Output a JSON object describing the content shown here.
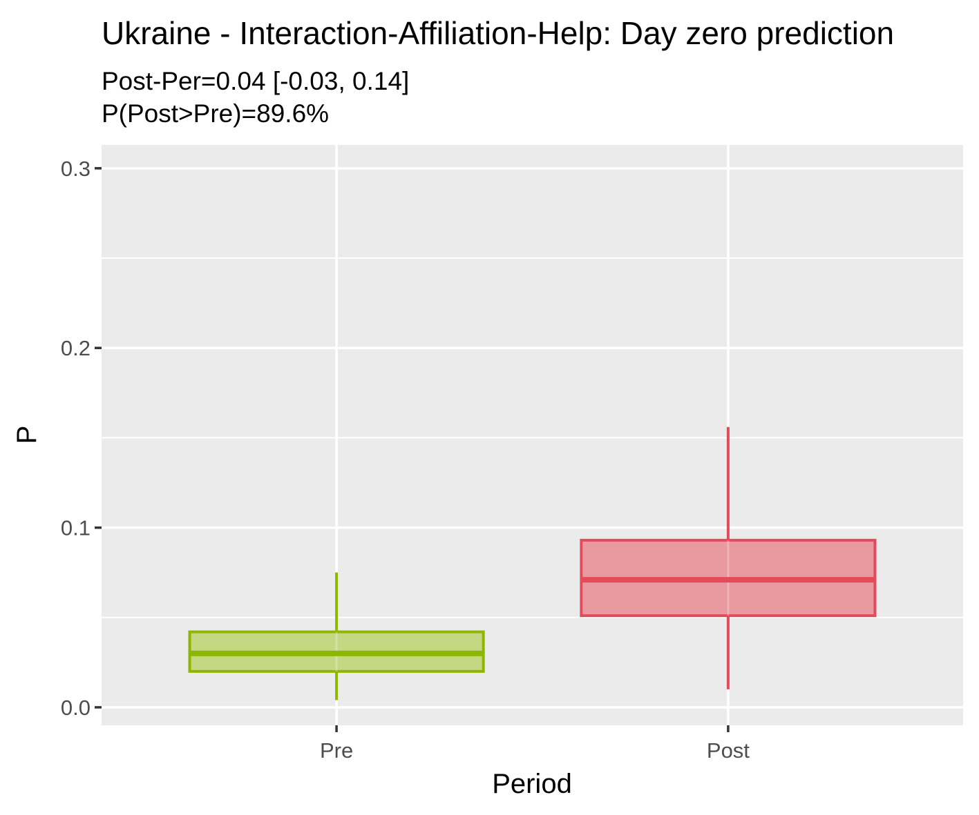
{
  "chart_data": {
    "type": "boxplot",
    "title": "Ukraine - Interaction-Affiliation-Help: Day zero prediction",
    "subtitle_lines": [
      "Post-Per=0.04 [-0.03, 0.14]",
      "P(Post>Pre)=89.6%"
    ],
    "xlabel": "Period",
    "ylabel": "P",
    "categories": [
      "Pre",
      "Post"
    ],
    "ylim": [
      -0.01,
      0.313
    ],
    "yticks": [
      0.0,
      0.1,
      0.2,
      0.3
    ],
    "ytick_labels": [
      "0.0",
      "0.1",
      "0.2",
      "0.3"
    ],
    "grid": true,
    "series": [
      {
        "category": "Pre",
        "color": "#8db600",
        "fill_color": "#c2d67c",
        "whisker_low": 0.004,
        "q1": 0.02,
        "median": 0.03,
        "q3": 0.042,
        "whisker_high": 0.075
      },
      {
        "category": "Post",
        "color": "#e34a5a",
        "fill_color": "#e9959c",
        "whisker_low": 0.01,
        "q1": 0.051,
        "median": 0.071,
        "q3": 0.093,
        "whisker_high": 0.156
      }
    ]
  }
}
